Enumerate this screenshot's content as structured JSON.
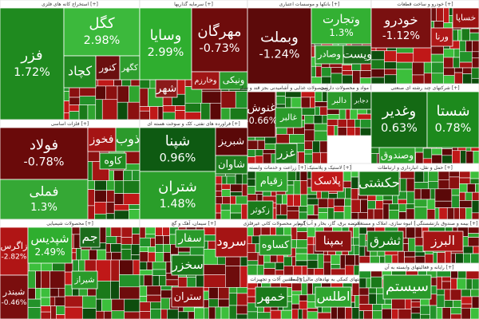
{
  "sectors": [
    {
      "title": "استخراج کانه های فلزی [+]",
      "stocks": [
        {
          "name": "فزر",
          "change": 1.72,
          "change_label": "1.72%",
          "color": "#1f8a1f"
        },
        {
          "name": "کگل",
          "change": 2.98,
          "change_label": "2.98%",
          "color": "#3cb93c"
        },
        {
          "name": "کچاد",
          "color": "#228b22"
        },
        {
          "name": "کنور",
          "color": "#6b0f0f"
        },
        {
          "name": "کگهر",
          "color": "#2e9e2e"
        }
      ]
    },
    {
      "title": "سرمایه گذاریها [+]",
      "stocks": [
        {
          "name": "وسایا",
          "change": 2.99,
          "change_label": "2.99%",
          "color": "#2fae2f"
        },
        {
          "name": "مهرگان",
          "change": -0.73,
          "change_label": "-0.73%",
          "color": "#6e0c0c"
        },
        {
          "name": "شهر",
          "color": "#8b1a1a"
        },
        {
          "name": "وخارزم",
          "color": "#a01515"
        },
        {
          "name": "ونیکی",
          "color": "#2c9a2c"
        }
      ]
    },
    {
      "title": "بانکها و موسسات اعتباری [+]",
      "stocks": [
        {
          "name": "وبملت",
          "change": -1.24,
          "change_label": "-1.24%",
          "color": "#5c0a0a"
        },
        {
          "name": "وتجارت",
          "change": 1.3,
          "change_label": "1.3%",
          "color": "#33b033"
        },
        {
          "name": "وصادر",
          "color": "#2a9a2a"
        },
        {
          "name": "وپست",
          "color": "#1c6b1c"
        }
      ]
    },
    {
      "title": "خودرو و ساخت قطعات [+]",
      "stocks": [
        {
          "name": "خودرو",
          "change": -1.12,
          "change_label": "-1.12%",
          "color": "#7a1010"
        },
        {
          "name": "ورنا",
          "color": "#b01818"
        },
        {
          "name": "خساپا",
          "color": "#9a1212"
        }
      ]
    },
    {
      "title": "محصولات غذایی و آشامیدنی بجز قند و شکر [+]",
      "stocks": [
        {
          "name": "غنوش",
          "change": -0.66,
          "change_label": "-0.66%",
          "color": "#5a0808"
        },
        {
          "name": "غالبر",
          "color": "#2a9a2a"
        },
        {
          "name": "غزر",
          "color": "#1f7f1f"
        }
      ]
    },
    {
      "title": "مواد و محصولات دارویی [+]",
      "stocks": [
        {
          "name": "دالبر",
          "color": "#2a9a2a"
        },
        {
          "name": "دجابر",
          "color": "#176617"
        }
      ]
    },
    {
      "title": "شرکتهای چند رشته ای صنعتی [+]",
      "stocks": [
        {
          "name": "وغدیر",
          "change": 0.63,
          "change_label": "0.63%",
          "color": "#146a14"
        },
        {
          "name": "شستا",
          "change": 0.78,
          "change_label": "0.78%",
          "color": "#1d8a1d"
        },
        {
          "name": "وصندوق",
          "color": "#2fa52f"
        }
      ]
    },
    {
      "title": "فلزات اساسی [+]",
      "stocks": [
        {
          "name": "فولاد",
          "change": -0.78,
          "change_label": "-0.78%",
          "color": "#6a0a0a"
        },
        {
          "name": "فملی",
          "change": 1.3,
          "change_label": "1.3%",
          "color": "#35a835"
        },
        {
          "name": "فخوز",
          "color": "#a51414"
        },
        {
          "name": "ذوب",
          "color": "#2c9a2c"
        },
        {
          "name": "کاوه",
          "color": "#1f8a1f"
        }
      ]
    },
    {
      "title": "فراورده های نفتی، کک و سوخت هسته ای [+]",
      "stocks": [
        {
          "name": "شپنا",
          "change": 0.96,
          "change_label": "0.96%",
          "color": "#0e5a12"
        },
        {
          "name": "شتران",
          "change": 1.48,
          "change_label": "1.48%",
          "color": "#2a9e2a"
        },
        {
          "name": "شبریز",
          "color": "#5a0808"
        },
        {
          "name": "شاوان",
          "color": "#1f7f1f"
        }
      ]
    },
    {
      "title": "زراعت و خدمات وابسته [+]",
      "stocks": [
        {
          "name": "زقیام",
          "color": "#2fa52f"
        },
        {
          "name": "زکوثر",
          "color": "#1a7a1a"
        }
      ]
    },
    {
      "title": "لاستیک و پلاستیک [+]",
      "stocks": [
        {
          "name": "پلاسک",
          "color": "#c01818"
        }
      ]
    },
    {
      "title": "حمل و نقل، انبارداری و ارتباطات [+]",
      "stocks": [
        {
          "name": "حکشتی",
          "color": "#1a7a1a"
        }
      ]
    },
    {
      "title": "محصولات شیمیایی [+]",
      "stocks": [
        {
          "name": "زاگرس",
          "change": -2.82,
          "change_label": "-2.82%",
          "color": "#b01515"
        },
        {
          "name": "شپدیس",
          "change": 2.49,
          "change_label": "2.49%",
          "color": "#2fae2f"
        },
        {
          "name": "شبندر",
          "change": -0.46,
          "change_label": "-0.46%",
          "color": "#7a0e0e"
        },
        {
          "name": "جم",
          "color": "#1c6b1c"
        },
        {
          "name": "شیراز",
          "color": "#2a9a2a"
        }
      ]
    },
    {
      "title": "سیمان، آهک و گچ [+]",
      "stocks": [
        {
          "name": "سرود",
          "color": "#a51414"
        },
        {
          "name": "سفار",
          "color": "#2a9a2a"
        },
        {
          "name": "سخزر",
          "color": "#1a7a1a"
        },
        {
          "name": "ستران",
          "color": "#8b1010"
        }
      ]
    },
    {
      "title": "سایر محصولات کانی غیرفلزی [+]",
      "stocks": [
        {
          "name": "کساوه",
          "color": "#2a9a2a"
        }
      ]
    },
    {
      "title": "ماشین آلات و تجهیزات [+]",
      "stocks": [
        {
          "name": "خمهر",
          "color": "#1a7a1a"
        }
      ]
    },
    {
      "title": "عرضه برق، گاز، بخار و آب گرم [+]",
      "stocks": [
        {
          "name": "بمپنا",
          "color": "#8b1010"
        }
      ]
    },
    {
      "title": "فعالیتهای کمکی به نهادهای مالی واسط [+]",
      "stocks": [
        {
          "name": "اطلس",
          "color": "#2fa52f"
        }
      ]
    },
    {
      "title": "انبوه سازی، املاک و مستغلات [+]",
      "stocks": [
        {
          "name": "ثشرق",
          "color": "#1a7a1a"
        }
      ]
    },
    {
      "title": "بیمه و صندوق بازنشستگی [+]",
      "stocks": [
        {
          "name": "البرز",
          "color": "#a51414"
        }
      ]
    },
    {
      "title": "رایانه و فعالیتهای وابسته به آن [+]",
      "stocks": [
        {
          "name": "سیستم",
          "color": "#2a9a2a"
        }
      ]
    }
  ]
}
